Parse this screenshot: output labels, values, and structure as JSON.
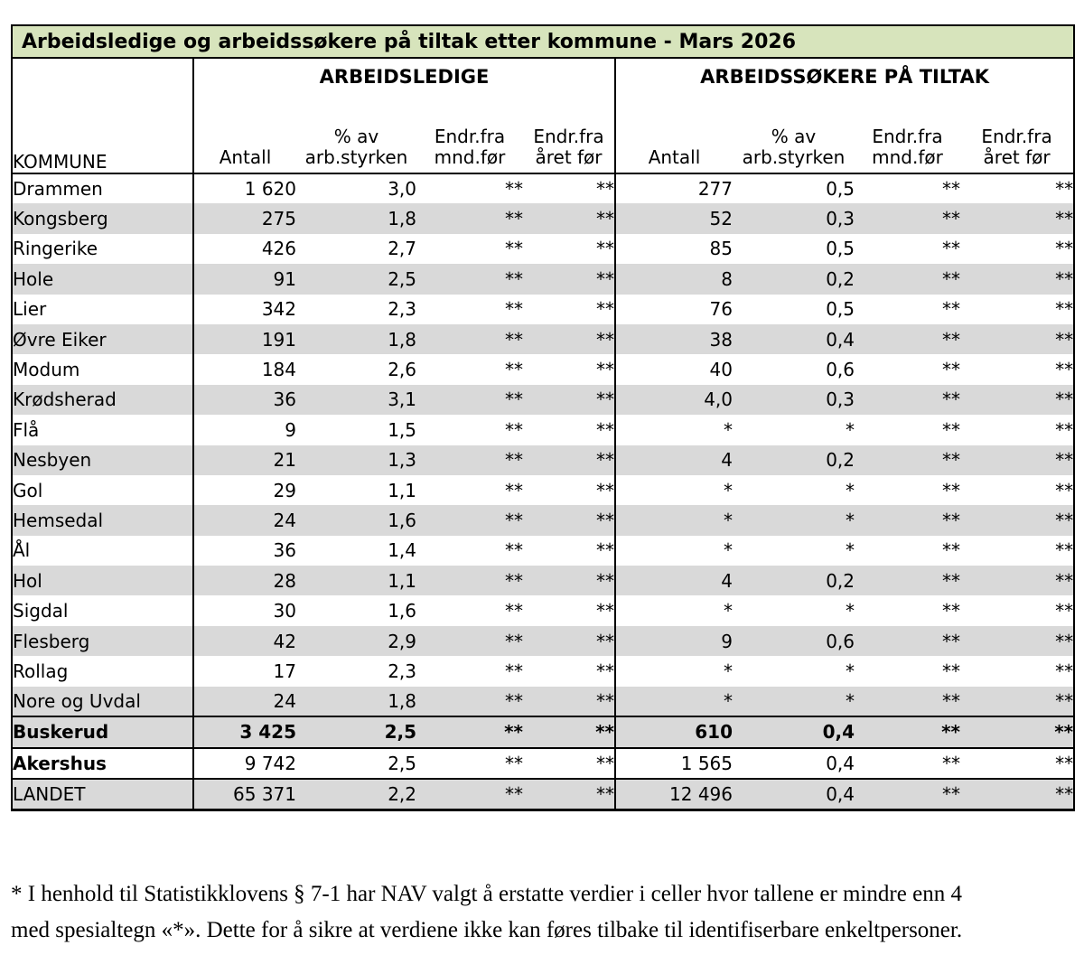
{
  "title": "Arbeidsledige og arbeidssøkere på tiltak etter kommune - Mars 2026",
  "table": {
    "kommune_header": "KOMMUNE",
    "groups": [
      {
        "title": "ARBEIDSLEDIGE",
        "columns": [
          {
            "line1": "",
            "line2": "Antall"
          },
          {
            "line1": "% av",
            "line2": "arb.styrken"
          },
          {
            "line1": "Endr.fra",
            "line2": "mnd.før"
          },
          {
            "line1": "Endr.fra",
            "line2": "året før"
          }
        ]
      },
      {
        "title": "ARBEIDSSØKERE PÅ TILTAK",
        "columns": [
          {
            "line1": "",
            "line2": "Antall"
          },
          {
            "line1": "% av",
            "line2": "arb.styrken"
          },
          {
            "line1": "Endr.fra",
            "line2": "mnd.før"
          },
          {
            "line1": "Endr.fra",
            "line2": "året før"
          }
        ]
      }
    ],
    "rows": [
      {
        "name": "Drammen",
        "values": [
          "1 620",
          "3,0",
          "**",
          "**",
          "277",
          "0,5",
          "**",
          "**"
        ],
        "bg": "white",
        "bold": "none",
        "total": false
      },
      {
        "name": "Kongsberg",
        "values": [
          "275",
          "1,8",
          "**",
          "**",
          "52",
          "0,3",
          "**",
          "**"
        ],
        "bg": "gray",
        "bold": "none",
        "total": false
      },
      {
        "name": "Ringerike",
        "values": [
          "426",
          "2,7",
          "**",
          "**",
          "85",
          "0,5",
          "**",
          "**"
        ],
        "bg": "white",
        "bold": "none",
        "total": false
      },
      {
        "name": "Hole",
        "values": [
          "91",
          "2,5",
          "**",
          "**",
          "8",
          "0,2",
          "**",
          "**"
        ],
        "bg": "gray",
        "bold": "none",
        "total": false
      },
      {
        "name": "Lier",
        "values": [
          "342",
          "2,3",
          "**",
          "**",
          "76",
          "0,5",
          "**",
          "**"
        ],
        "bg": "white",
        "bold": "none",
        "total": false
      },
      {
        "name": "Øvre Eiker",
        "values": [
          "191",
          "1,8",
          "**",
          "**",
          "38",
          "0,4",
          "**",
          "**"
        ],
        "bg": "gray",
        "bold": "none",
        "total": false
      },
      {
        "name": "Modum",
        "values": [
          "184",
          "2,6",
          "**",
          "**",
          "40",
          "0,6",
          "**",
          "**"
        ],
        "bg": "white",
        "bold": "none",
        "total": false
      },
      {
        "name": "Krødsherad",
        "values": [
          "36",
          "3,1",
          "**",
          "**",
          "4,0",
          "0,3",
          "**",
          "**"
        ],
        "bg": "gray",
        "bold": "none",
        "total": false
      },
      {
        "name": "Flå",
        "values": [
          "9",
          "1,5",
          "**",
          "**",
          "*",
          "*",
          "**",
          "**"
        ],
        "bg": "white",
        "bold": "none",
        "total": false
      },
      {
        "name": "Nesbyen",
        "values": [
          "21",
          "1,3",
          "**",
          "**",
          "4",
          "0,2",
          "**",
          "**"
        ],
        "bg": "gray",
        "bold": "none",
        "total": false
      },
      {
        "name": "Gol",
        "values": [
          "29",
          "1,1",
          "**",
          "**",
          "*",
          "*",
          "**",
          "**"
        ],
        "bg": "white",
        "bold": "none",
        "total": false
      },
      {
        "name": "Hemsedal",
        "values": [
          "24",
          "1,6",
          "**",
          "**",
          "*",
          "*",
          "**",
          "**"
        ],
        "bg": "gray",
        "bold": "none",
        "total": false
      },
      {
        "name": "Ål",
        "values": [
          "36",
          "1,4",
          "**",
          "**",
          "*",
          "*",
          "**",
          "**"
        ],
        "bg": "white",
        "bold": "none",
        "total": false
      },
      {
        "name": "Hol",
        "values": [
          "28",
          "1,1",
          "**",
          "**",
          "4",
          "0,2",
          "**",
          "**"
        ],
        "bg": "gray",
        "bold": "none",
        "total": false
      },
      {
        "name": "Sigdal",
        "values": [
          "30",
          "1,6",
          "**",
          "**",
          "*",
          "*",
          "**",
          "**"
        ],
        "bg": "white",
        "bold": "none",
        "total": false
      },
      {
        "name": "Flesberg",
        "values": [
          "42",
          "2,9",
          "**",
          "**",
          "9",
          "0,6",
          "**",
          "**"
        ],
        "bg": "gray",
        "bold": "none",
        "total": false
      },
      {
        "name": "Rollag",
        "values": [
          "17",
          "2,3",
          "**",
          "**",
          "*",
          "*",
          "**",
          "**"
        ],
        "bg": "white",
        "bold": "none",
        "total": false
      },
      {
        "name": "Nore og Uvdal",
        "values": [
          "24",
          "1,8",
          "**",
          "**",
          "*",
          "*",
          "**",
          "**"
        ],
        "bg": "gray",
        "bold": "none",
        "total": false
      },
      {
        "name": "Buskerud",
        "values": [
          "3 425",
          "2,5",
          "**",
          "**",
          "610",
          "0,4",
          "**",
          "**"
        ],
        "bg": "gray",
        "bold": "all",
        "total": true
      },
      {
        "name": "Akershus",
        "values": [
          "9 742",
          "2,5",
          "**",
          "**",
          "1 565",
          "0,4",
          "**",
          "**"
        ],
        "bg": "white",
        "bold": "name",
        "total": true
      },
      {
        "name": "LANDET",
        "values": [
          "65 371",
          "2,2",
          "**",
          "**",
          "12 496",
          "0,4",
          "**",
          "**"
        ],
        "bg": "gray",
        "bold": "none",
        "total": true
      }
    ]
  },
  "footnote": {
    "line1": "* I henhold til Statistikklovens § 7-1 har NAV valgt å erstatte verdier i celler hvor tallene er mindre enn 4",
    "line2": "med spesialtegn «*». Dette for å sikre at verdiene ikke kan føres tilbake til identifiserbare enkeltpersoner."
  },
  "colors": {
    "title_bg": "#d7e4bc",
    "stripe": "#d9d9d9",
    "border": "#000000"
  }
}
